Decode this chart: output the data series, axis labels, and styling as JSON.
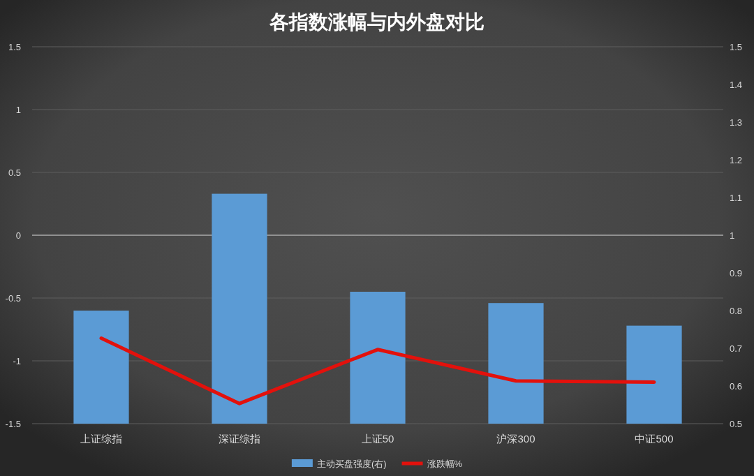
{
  "chart_data": {
    "type": "bar",
    "title": "各指数涨幅与内外盘对比",
    "categories": [
      "上证综指",
      "深证综指",
      "上证50",
      "沪深300",
      "中证500"
    ],
    "series": [
      {
        "name": "主动买盘强度(右)",
        "axis": "y2",
        "color": "#5b9bd5",
        "values": [
          0.8,
          1.11,
          0.85,
          0.82,
          0.76
        ]
      },
      {
        "name": "涨跌幅%",
        "type": "line",
        "color": "#e3110c",
        "values": [
          -0.82,
          -1.34,
          -0.91,
          -1.16,
          -1.17
        ]
      }
    ],
    "ylim": [
      -1.5,
      1.5
    ],
    "yticks": [
      -1.5,
      -1,
      -0.5,
      0,
      0.5,
      1,
      1.5
    ],
    "y2lim": [
      0.5,
      1.5
    ],
    "y2ticks": [
      0.5,
      0.6,
      0.7,
      0.8,
      0.9,
      1,
      1.1,
      1.2,
      1.3,
      1.4,
      1.5
    ],
    "grid": "y",
    "legend": "bottom",
    "line_style": "solid"
  }
}
